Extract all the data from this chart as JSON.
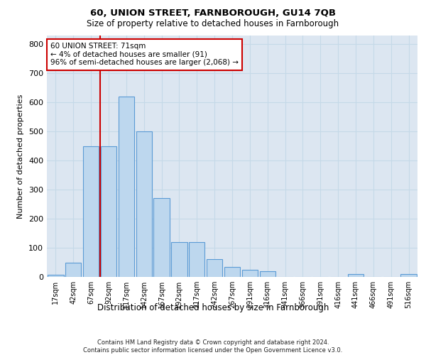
{
  "title_line1": "60, UNION STREET, FARNBOROUGH, GU14 7QB",
  "title_line2": "Size of property relative to detached houses in Farnborough",
  "xlabel": "Distribution of detached houses by size in Farnborough",
  "ylabel": "Number of detached properties",
  "footer_line1": "Contains HM Land Registry data © Crown copyright and database right 2024.",
  "footer_line2": "Contains public sector information licensed under the Open Government Licence v3.0.",
  "categories": [
    "17sqm",
    "42sqm",
    "67sqm",
    "92sqm",
    "117sqm",
    "142sqm",
    "167sqm",
    "192sqm",
    "217sqm",
    "242sqm",
    "267sqm",
    "291sqm",
    "316sqm",
    "341sqm",
    "366sqm",
    "391sqm",
    "416sqm",
    "441sqm",
    "466sqm",
    "491sqm",
    "516sqm"
  ],
  "bar_values": [
    8,
    50,
    450,
    450,
    620,
    500,
    270,
    120,
    120,
    60,
    35,
    25,
    20,
    0,
    0,
    0,
    0,
    10,
    0,
    0,
    10
  ],
  "bar_color": "#bdd7ee",
  "bar_edge_color": "#5b9bd5",
  "ylim": [
    0,
    830
  ],
  "yticks": [
    0,
    100,
    200,
    300,
    400,
    500,
    600,
    700,
    800
  ],
  "grid_color": "#c5d9e8",
  "bg_color": "#dce6f1",
  "annotation_text": "60 UNION STREET: 71sqm\n← 4% of detached houses are smaller (91)\n96% of semi-detached houses are larger (2,068) →",
  "annotation_box_color": "#ffffff",
  "annotation_box_edge": "#cc0000",
  "vline_color": "#cc0000",
  "vline_x_index": 2.5
}
